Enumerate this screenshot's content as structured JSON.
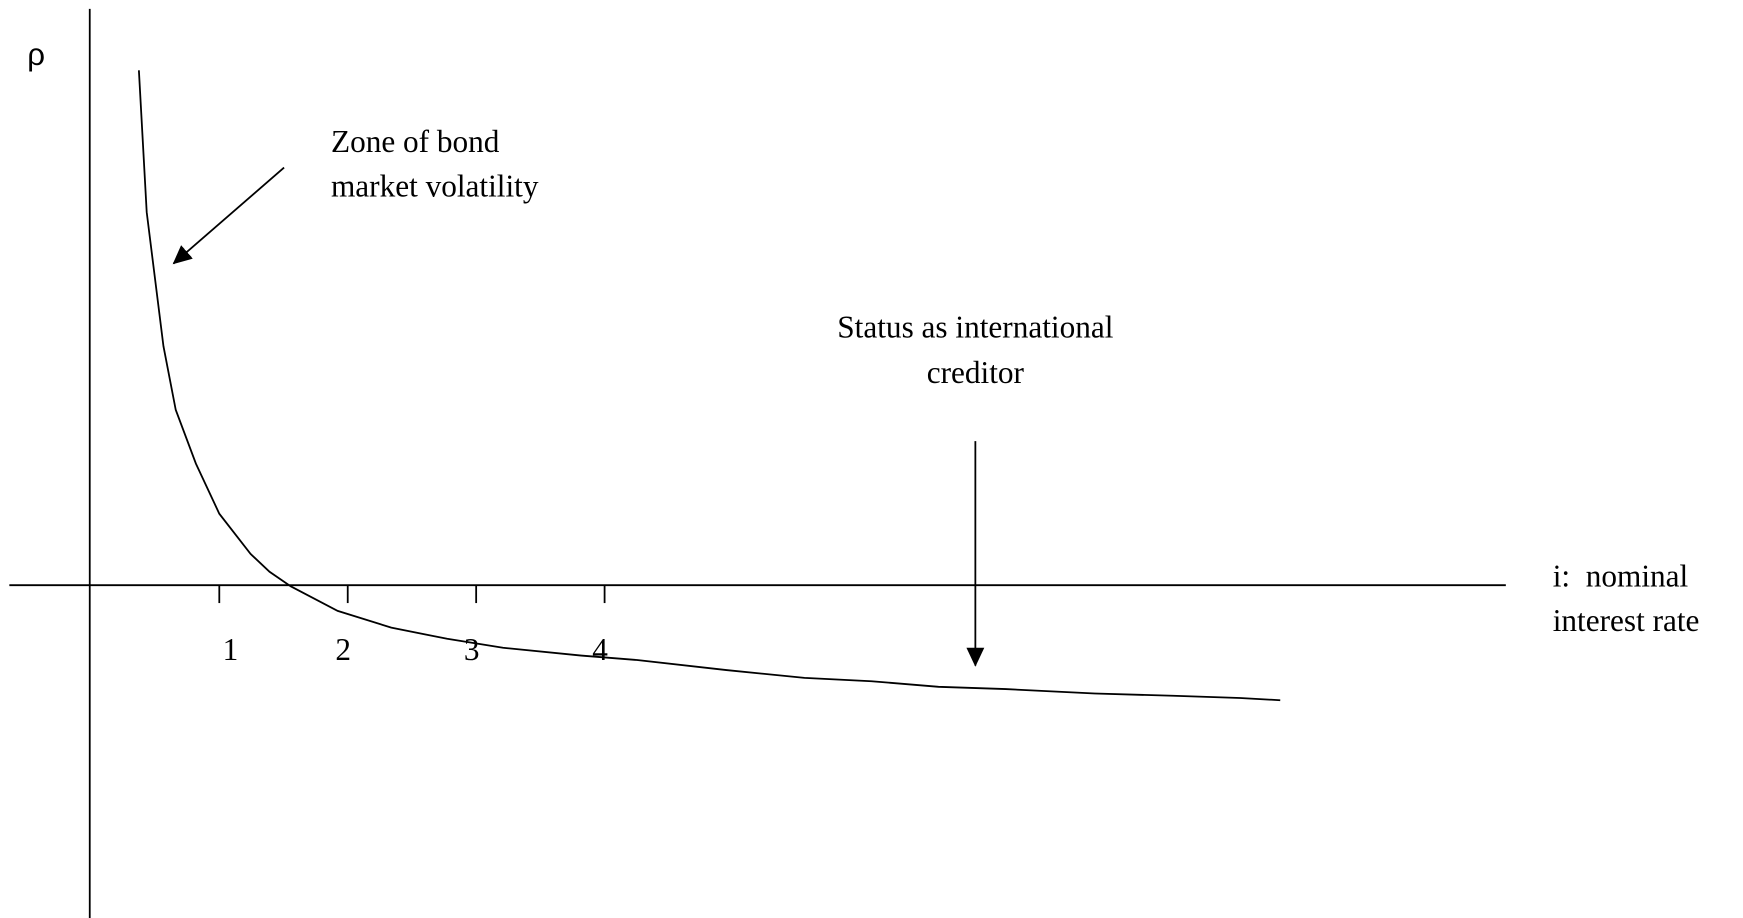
{
  "axis": {
    "y_label": "ρ",
    "x_label": [
      "i:  nominal",
      "interest rate"
    ],
    "ticks": [
      "1",
      "2",
      "3",
      "4"
    ]
  },
  "annotations": [
    {
      "lines": [
        "Zone of bond",
        "market volatility"
      ]
    },
    {
      "lines": [
        "Status as international",
        "creditor"
      ]
    }
  ]
}
